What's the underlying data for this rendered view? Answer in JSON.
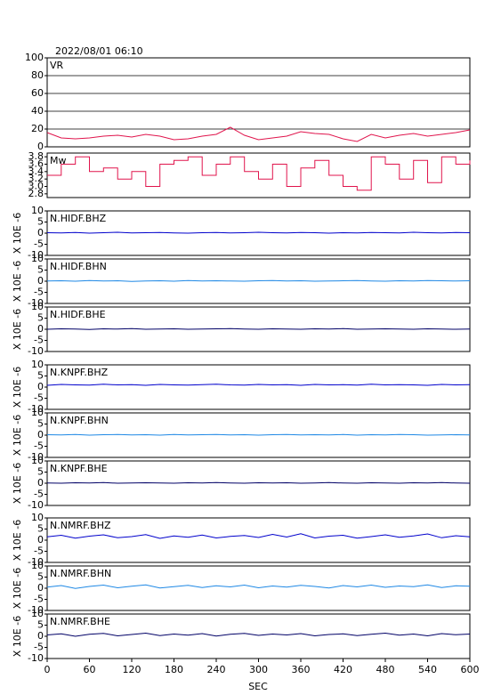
{
  "chart_data": {
    "type": "multi-panel-line",
    "title": "2022/08/01 06:10",
    "xlabel": "SEC",
    "xlim": [
      0,
      600
    ],
    "xticks": [
      0,
      60,
      120,
      180,
      240,
      300,
      360,
      420,
      480,
      540,
      600
    ],
    "x": [
      0,
      20,
      40,
      60,
      80,
      100,
      120,
      140,
      160,
      180,
      200,
      220,
      240,
      260,
      280,
      300,
      320,
      340,
      360,
      380,
      400,
      420,
      440,
      460,
      480,
      500,
      520,
      540,
      560,
      580,
      600
    ],
    "panels": [
      {
        "type": "line",
        "label": "VR",
        "color": "#e0144c",
        "grid": true,
        "ylim": [
          0,
          100
        ],
        "yticks": [
          0,
          20,
          40,
          60,
          80,
          100
        ],
        "values": [
          16,
          10,
          9,
          10,
          12,
          13,
          11,
          14,
          12,
          8,
          9,
          12,
          14,
          22,
          13,
          8,
          10,
          12,
          17,
          15,
          14,
          9,
          6,
          14,
          10,
          13,
          15,
          12,
          14,
          16,
          19
        ]
      },
      {
        "type": "step",
        "label": "Mw",
        "color": "#e0144c",
        "grid": false,
        "ylim": [
          2.7,
          3.9
        ],
        "yticks": [
          2.8,
          {
            "value": 3,
            "label": "3.0"
          },
          3.2,
          3.4,
          3.6,
          3.8
        ],
        "values": [
          3.3,
          3.6,
          3.8,
          3.4,
          3.5,
          3.2,
          3.4,
          3.0,
          3.6,
          3.7,
          3.8,
          3.3,
          3.6,
          3.8,
          3.4,
          3.2,
          3.6,
          3.0,
          3.5,
          3.7,
          3.3,
          3.0,
          2.9,
          3.8,
          3.6,
          3.2,
          3.7,
          3.1,
          3.8,
          3.6,
          3.7
        ]
      },
      {
        "type": "line",
        "label": "N.HIDF.BHZ",
        "ylabel": "X 10E -6",
        "color": "#0000cc",
        "ylim": [
          -10,
          10
        ],
        "yticks": [
          -10,
          -5,
          0,
          5,
          10
        ],
        "values": [
          0.2,
          0.1,
          0.3,
          0.0,
          0.2,
          0.4,
          0.1,
          0.2,
          0.3,
          0.1,
          0.0,
          0.2,
          0.3,
          0.1,
          0.2,
          0.4,
          0.2,
          0.1,
          0.3,
          0.2,
          0.0,
          0.2,
          0.1,
          0.3,
          0.2,
          0.1,
          0.4,
          0.2,
          0.1,
          0.3,
          0.2
        ]
      },
      {
        "type": "line",
        "label": "N.HIDF.BHN",
        "ylabel": "X 10E -6",
        "color": "#1e88e5",
        "ylim": [
          -10,
          10
        ],
        "yticks": [
          -10,
          -5,
          0,
          5,
          10
        ],
        "values": [
          0.1,
          0.2,
          0.0,
          0.3,
          0.1,
          0.2,
          -0.1,
          0.1,
          0.2,
          0.0,
          0.3,
          0.1,
          0.2,
          0.1,
          0.0,
          0.2,
          0.3,
          0.1,
          0.2,
          0.0,
          0.1,
          0.2,
          0.3,
          0.1,
          0.0,
          0.2,
          0.1,
          0.3,
          0.2,
          0.1,
          0.2
        ]
      },
      {
        "type": "line",
        "label": "N.HIDF.BHE",
        "ylabel": "X 10E -6",
        "color": "#000066",
        "ylim": [
          -10,
          10
        ],
        "yticks": [
          -10,
          -5,
          0,
          5,
          10
        ],
        "values": [
          0.0,
          0.2,
          0.1,
          -0.1,
          0.2,
          0.1,
          0.3,
          0.0,
          0.1,
          0.2,
          0.0,
          0.1,
          0.2,
          0.3,
          0.1,
          0.0,
          0.2,
          0.1,
          0.0,
          0.2,
          0.1,
          0.3,
          0.0,
          0.1,
          0.2,
          0.1,
          0.0,
          0.2,
          0.1,
          0.0,
          0.1
        ]
      },
      {
        "type": "line",
        "label": "N.KNPF.BHZ",
        "ylabel": "X 10E -6",
        "color": "#0000cc",
        "ylim": [
          -10,
          10
        ],
        "yticks": [
          -10,
          -5,
          0,
          5,
          10
        ],
        "values": [
          0.8,
          1.2,
          1.0,
          0.9,
          1.3,
          1.0,
          1.1,
          0.8,
          1.2,
          1.0,
          0.9,
          1.1,
          1.3,
          1.0,
          0.9,
          1.2,
          1.0,
          1.1,
          0.8,
          1.2,
          1.0,
          1.1,
          0.9,
          1.3,
          1.0,
          1.1,
          1.0,
          0.8,
          1.2,
          1.0,
          1.1
        ]
      },
      {
        "type": "line",
        "label": "N.KNPF.BHN",
        "ylabel": "X 10E -6",
        "color": "#1e88e5",
        "ylim": [
          -10,
          10
        ],
        "yticks": [
          -10,
          -5,
          0,
          5,
          10
        ],
        "values": [
          0.2,
          0.1,
          0.3,
          0.0,
          0.2,
          0.3,
          0.1,
          0.2,
          0.0,
          0.3,
          0.1,
          0.2,
          0.3,
          0.1,
          0.2,
          0.0,
          0.2,
          0.3,
          0.1,
          0.2,
          0.1,
          0.3,
          0.0,
          0.2,
          0.1,
          0.3,
          0.2,
          0.0,
          0.1,
          0.2,
          0.1
        ]
      },
      {
        "type": "line",
        "label": "N.KNPF.BHE",
        "ylabel": "X 10E -6",
        "color": "#000066",
        "ylim": [
          -10,
          10
        ],
        "yticks": [
          -10,
          -5,
          0,
          5,
          10
        ],
        "values": [
          0.1,
          0.0,
          0.2,
          0.1,
          0.3,
          0.0,
          0.1,
          0.2,
          0.1,
          0.0,
          0.2,
          0.1,
          0.3,
          0.1,
          0.0,
          0.2,
          0.1,
          0.2,
          0.0,
          0.1,
          0.3,
          0.1,
          0.0,
          0.2,
          0.1,
          0.0,
          0.2,
          0.1,
          0.3,
          0.1,
          0.0
        ]
      },
      {
        "type": "line",
        "label": "N.NMRF.BHZ",
        "ylabel": "X 10E -6",
        "color": "#0000cc",
        "ylim": [
          -10,
          10
        ],
        "yticks": [
          -10,
          -5,
          0,
          5,
          10
        ],
        "values": [
          1.5,
          2.2,
          0.9,
          1.8,
          2.4,
          1.1,
          1.6,
          2.5,
          0.8,
          1.9,
          1.3,
          2.3,
          1.0,
          1.7,
          2.1,
          1.2,
          2.6,
          1.4,
          2.9,
          1.0,
          1.8,
          2.2,
          0.9,
          1.6,
          2.4,
          1.3,
          1.9,
          2.8,
          1.1,
          2.0,
          1.5
        ]
      },
      {
        "type": "line",
        "label": "N.NMRF.BHN",
        "ylabel": "X 10E -6",
        "color": "#1e88e5",
        "ylim": [
          -10,
          10
        ],
        "yticks": [
          -10,
          -5,
          0,
          5,
          10
        ],
        "values": [
          0.5,
          1.2,
          -0.1,
          0.8,
          1.4,
          0.2,
          0.9,
          1.5,
          0.1,
          0.7,
          1.3,
          0.3,
          1.1,
          0.6,
          1.4,
          0.2,
          1.0,
          0.5,
          1.3,
          0.8,
          0.1,
          1.2,
          0.6,
          1.4,
          0.4,
          1.0,
          0.7,
          1.5,
          0.3,
          1.1,
          0.9
        ]
      },
      {
        "type": "line",
        "label": "N.NMRF.BHE",
        "ylabel": "X 10E -6",
        "color": "#000066",
        "ylim": [
          -10,
          10
        ],
        "yticks": [
          -10,
          -5,
          0,
          5,
          10
        ],
        "values": [
          0.6,
          1.1,
          0.0,
          0.9,
          1.3,
          0.2,
          0.8,
          1.4,
          0.3,
          1.0,
          0.5,
          1.2,
          0.1,
          0.9,
          1.3,
          0.4,
          1.0,
          0.6,
          1.2,
          0.2,
          0.8,
          1.1,
          0.3,
          0.9,
          1.4,
          0.5,
          1.0,
          0.2,
          1.2,
          0.7,
          1.0
        ]
      }
    ]
  }
}
